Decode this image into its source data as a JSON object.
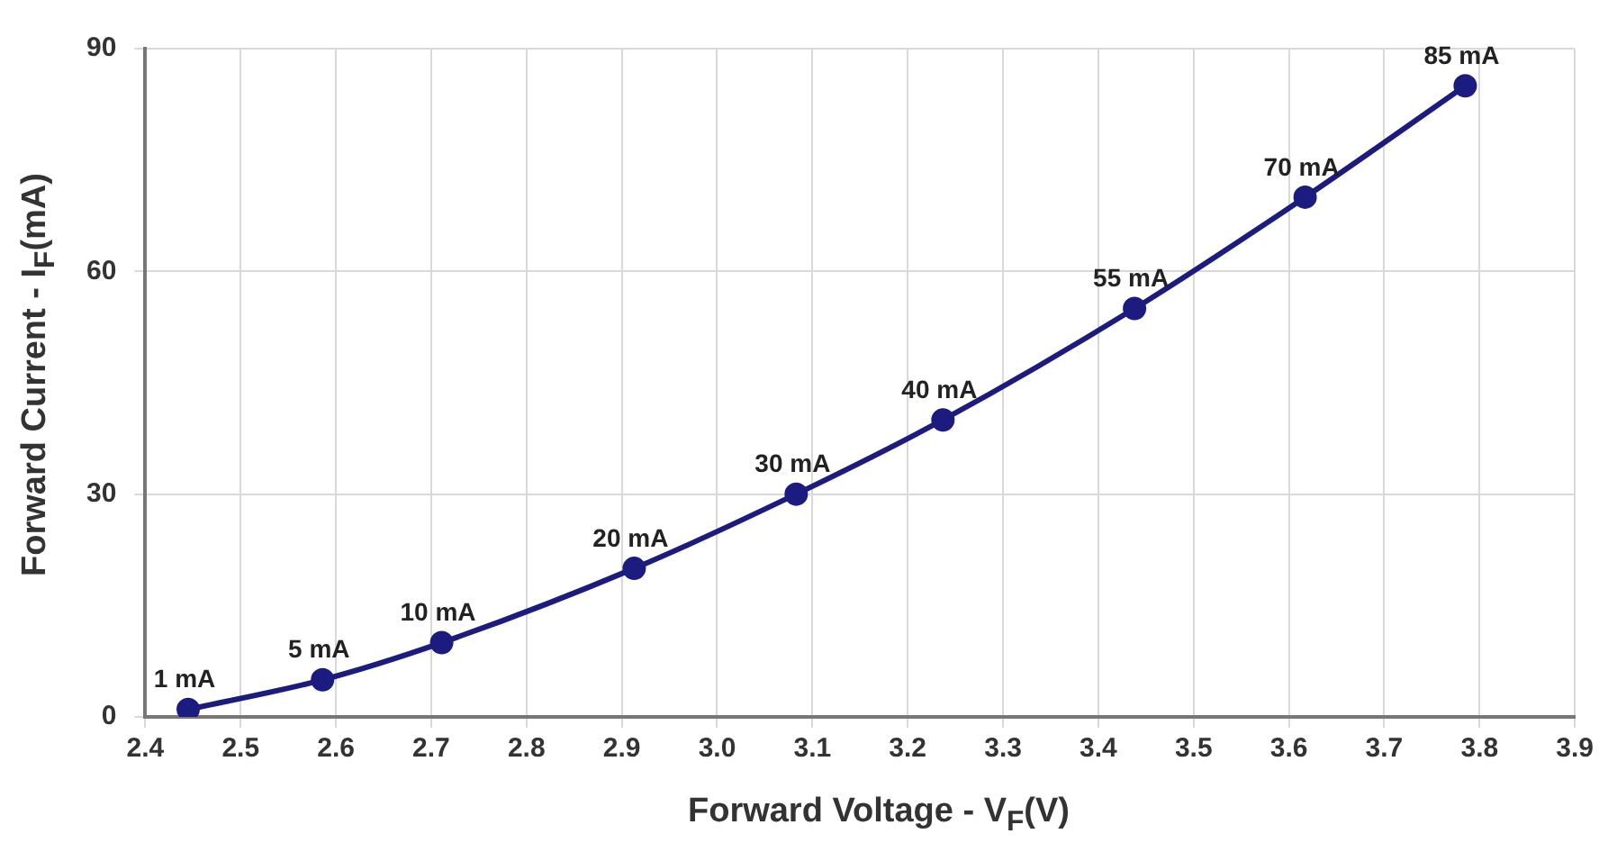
{
  "chart_data": {
    "type": "line",
    "xlabel": "Forward Voltage - V$_{F}$(V)",
    "ylabel": "Forward Current - I$_{F}$(mA)",
    "x": [
      2.445,
      2.586,
      2.711,
      2.913,
      3.083,
      3.237,
      3.438,
      3.617,
      3.785
    ],
    "series": [
      {
        "color": "#1c1c80",
        "values": [
          1,
          5,
          10,
          20,
          30,
          40,
          55,
          70,
          85
        ],
        "value_labels": [
          "1 mA",
          "5 mA",
          "10 mA",
          "20 mA",
          "30 mA",
          "40 mA",
          "55 mA",
          "70 mA",
          "85 mA"
        ]
      }
    ],
    "xlim": [
      2.4,
      3.9
    ],
    "xticks": [
      2.4,
      2.5,
      2.6,
      2.7,
      2.8,
      2.9,
      {
        "value": 3,
        "label": "3.0"
      },
      3.1,
      3.2,
      3.3,
      3.4,
      3.5,
      3.6,
      3.7,
      3.8,
      3.9
    ],
    "ylim": [
      0,
      90
    ],
    "yticks": [
      0,
      30,
      60,
      90
    ],
    "grid": true,
    "marker": "circle",
    "line_style": "solid",
    "legend": false
  }
}
